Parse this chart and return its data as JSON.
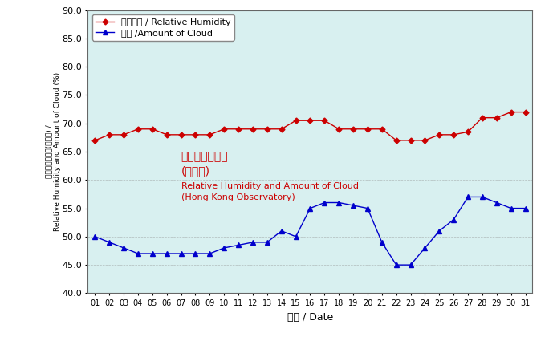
{
  "days": [
    1,
    2,
    3,
    4,
    5,
    6,
    7,
    8,
    9,
    10,
    11,
    12,
    13,
    14,
    15,
    16,
    17,
    18,
    19,
    20,
    21,
    22,
    23,
    24,
    25,
    26,
    27,
    28,
    29,
    30,
    31
  ],
  "relative_humidity": [
    67,
    68,
    68,
    69,
    69,
    68,
    68,
    68,
    68,
    69,
    69,
    69,
    69,
    69,
    70.5,
    70.5,
    70.5,
    69,
    69,
    69,
    69,
    67,
    67,
    67,
    68,
    68,
    68.5,
    71,
    71,
    72,
    72
  ],
  "amount_of_cloud": [
    50,
    49,
    48,
    47,
    47,
    47,
    47,
    47,
    47,
    48,
    48.5,
    49,
    49,
    51,
    50,
    55,
    56,
    56,
    55.5,
    55,
    49,
    45,
    45,
    48,
    51,
    53,
    57,
    57,
    56,
    55,
    55
  ],
  "rh_color": "#cc0000",
  "cloud_color": "#0000cc",
  "bg_color": "#d8f0f0",
  "legend_bg": "#ffffff",
  "xlabel": "日期 / Date",
  "ylabel_cn": "相對濕度及雲量(百分比) /",
  "ylabel_en": "Relative Humidity and Amount of Cloud (%)",
  "annotation_line1": "相對濕度及雲量",
  "annotation_line2": "(天文台)",
  "annotation_line3": "Relative Humidity and Amount of Cloud",
  "annotation_line4": "(Hong Kong Observatory)",
  "legend_rh": "相對濕度 / Relative Humidity",
  "legend_cloud": "雲量 /Amount of Cloud",
  "ylim": [
    40.0,
    90.0
  ],
  "yticks": [
    40.0,
    45.0,
    50.0,
    55.0,
    60.0,
    65.0,
    70.0,
    75.0,
    80.0,
    85.0,
    90.0
  ],
  "axis_fontsize": 8,
  "legend_fontsize": 8,
  "annotation_cn_fontsize": 10,
  "annotation_en_fontsize": 8
}
